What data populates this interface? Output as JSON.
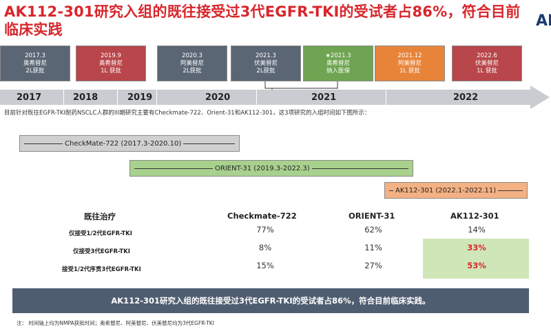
{
  "title": "AK112-301研究入组的既往接受过3代EGFR-TKI的受试者占86%，符合目前临床实践",
  "timeline": {
    "events": [
      {
        "text": "2017.3\n奥希替尼\n2L获批",
        "color": "#5b6675"
      },
      {
        "text": "2019.9\n奥希替尼\n1L 获批",
        "color": "#b8464a"
      },
      {
        "text": "2020.3\n阿美替尼\n2L获批",
        "color": "#5b6675"
      },
      {
        "text": "2021.3\n伏美替尼\n2L获批",
        "color": "#5b6675"
      },
      {
        "text": "★2021.3\n奥希替尼\n纳入医保",
        "color": "#6fa552"
      },
      {
        "text": "2021.12\n阿美替尼\n1L 获批",
        "color": "#e8843a"
      },
      {
        "text": "2022.6\n伏美替尼\n1L 获批",
        "color": "#b8464a"
      }
    ],
    "years": [
      "2017",
      "2018",
      "2019",
      "2020",
      "2021",
      "2022"
    ]
  },
  "subtitle": "目前针对既往EGFR-TKI耐药NSCLC人群的III期研究主要有Checkmate-722、Orient-31和AK112-301，这3项研究的入组时间如下图所示：",
  "studies": [
    {
      "label": "CheckMate-722 (2017.3-2020.10)",
      "color": "#d0d0d0"
    },
    {
      "label": "ORIENT-31 (2019.3-2022.3)",
      "color": "#a9d18e"
    },
    {
      "label": "AK112-301 (2022.1-2022.11)",
      "color": "#f4b183"
    }
  ],
  "table": {
    "headers": [
      "既往治疗",
      "Checkmate-722",
      "ORIENT-31",
      "AK112-301"
    ],
    "rows": [
      {
        "label": "仅接受1/2代EGFR-TKI",
        "values": [
          "77%",
          "62%",
          "14%"
        ]
      },
      {
        "label": "仅接受3代EGFR-TKI",
        "values": [
          "8%",
          "11%",
          "33%"
        ]
      },
      {
        "label": "接受1/2代序贯3代EGFR-TKI",
        "values": [
          "15%",
          "27%",
          "53%"
        ]
      }
    ]
  },
  "banner": "AK112-301研究入组的既往接受过3代EGFR-TKI的受试者占86%，符合目前临床实践。",
  "note": "注：  时间轴上均为NMPA获批时间；奥希替尼、阿美替尼、伏美替尼均为3代EGFR-TKI",
  "logo": "AK"
}
